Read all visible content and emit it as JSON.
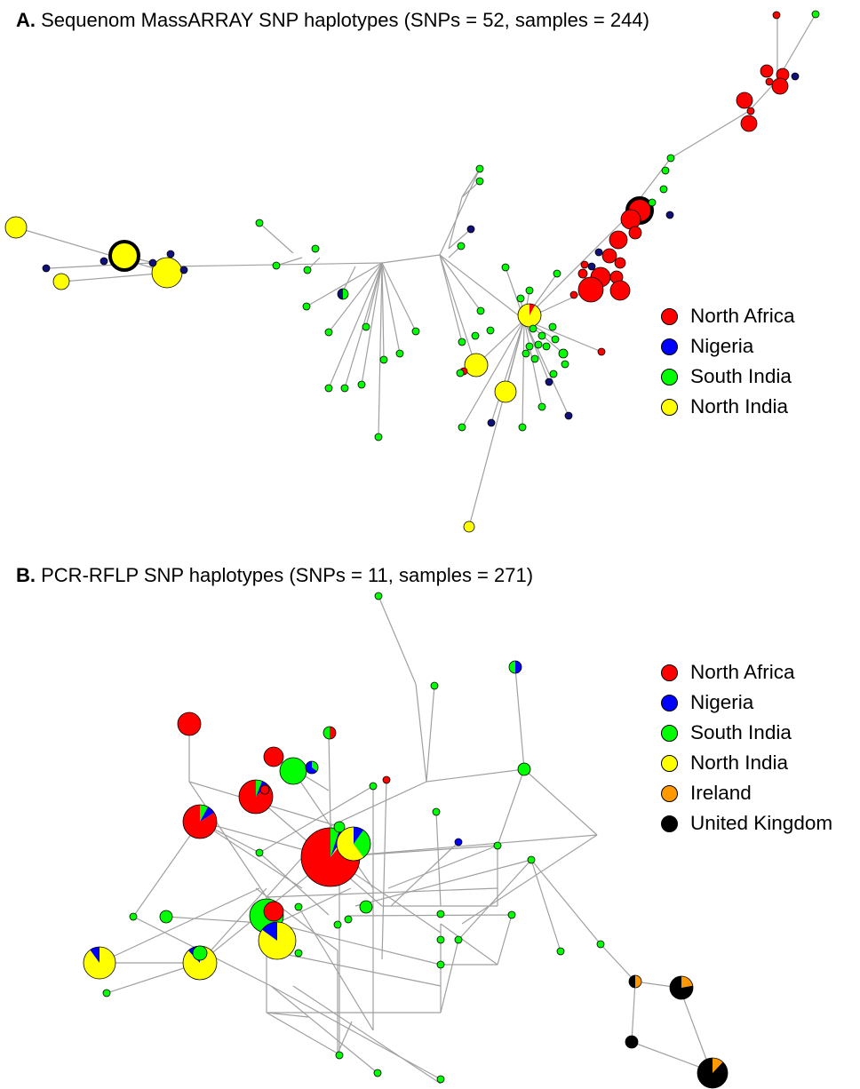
{
  "colors": {
    "north_africa": "#ff0000",
    "nigeria": "#0000ff",
    "south_india": "#00ff00",
    "north_india": "#ffff00",
    "ireland": "#ff9900",
    "united_kingdom": "#000000",
    "dark_nigeria": "#10107a",
    "edge": "#a0a0a0"
  },
  "panel_a": {
    "title_letter": "A.",
    "title_text": "Sequenom MassARRAY SNP haplotypes (SNPs = 52, samples = 244)",
    "legend": [
      {
        "label": "North Africa",
        "color": "#ff0000"
      },
      {
        "label": "Nigeria",
        "color": "#0000ff"
      },
      {
        "label": "South India",
        "color": "#00ff00"
      },
      {
        "label": "North India",
        "color": "#ffff00"
      }
    ]
  },
  "panel_b": {
    "title_letter": "B.",
    "title_text": "PCR-RFLP SNP haplotypes (SNPs = 11, samples = 271)",
    "legend": [
      {
        "label": "North Africa",
        "color": "#ff0000"
      },
      {
        "label": "Nigeria",
        "color": "#0000ff"
      },
      {
        "label": "South India",
        "color": "#00ff00"
      },
      {
        "label": "North India",
        "color": "#ffff00"
      },
      {
        "label": "Ireland",
        "color": "#ff9900"
      },
      {
        "label": "United Kingdom",
        "color": "#000000"
      }
    ]
  }
}
